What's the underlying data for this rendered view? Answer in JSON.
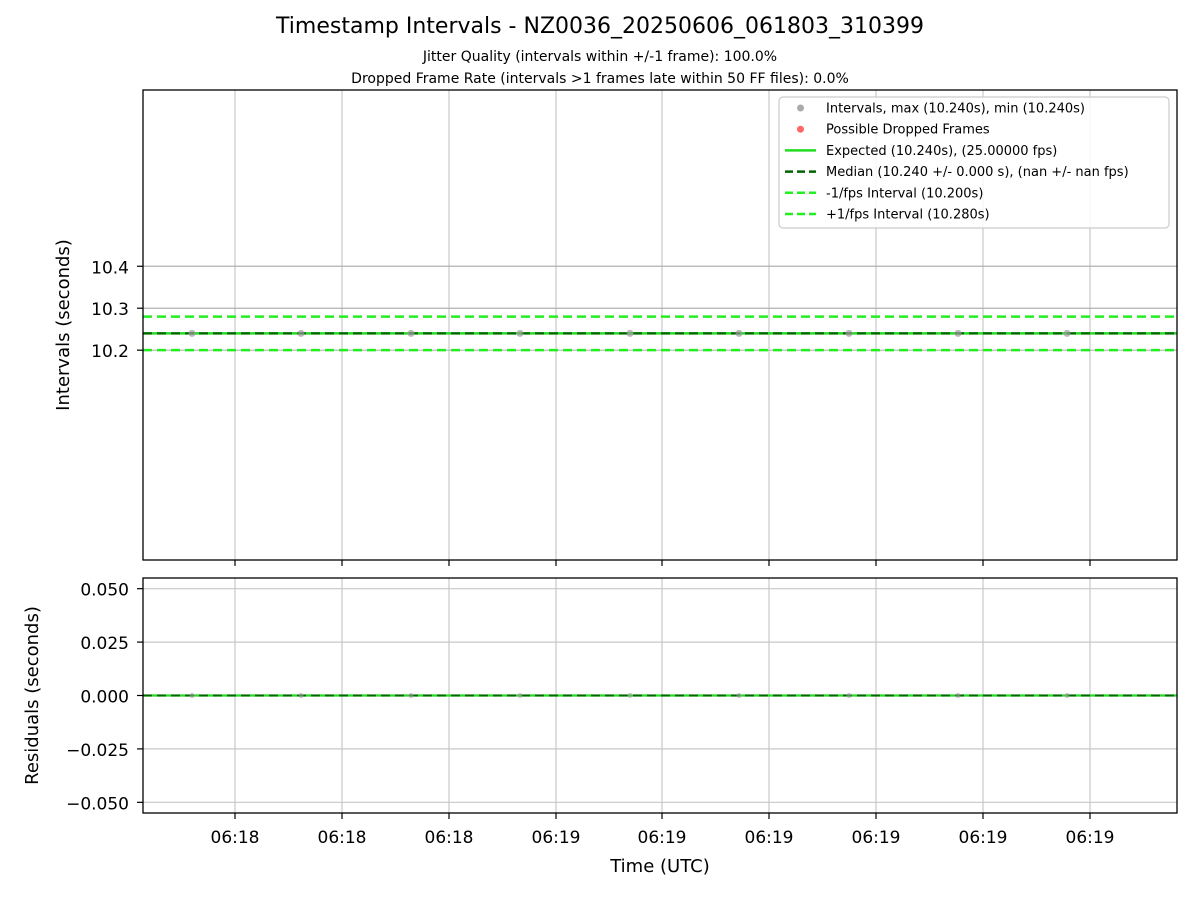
{
  "chart_data": {
    "type": "scatter",
    "title": "Timestamp Intervals - NZ0036_20250606_061803_310399",
    "subtitle_1": "Jitter Quality (intervals within +/-1 frame): 100.0%",
    "subtitle_2": "Dropped Frame Rate (intervals >1 frames late within 50 FF files): 0.0%",
    "xlabel": "Time (UTC)",
    "x_tick_labels": [
      "06:18",
      "06:18",
      "06:18",
      "06:19",
      "06:19",
      "06:19",
      "06:19",
      "06:19",
      "06:19"
    ],
    "top_panel": {
      "ylabel": "Intervals (seconds)",
      "y_ticks": [
        10.2,
        10.3,
        10.4
      ],
      "y_tick_labels": [
        "10.2",
        "10.3",
        "10.4"
      ],
      "ylim": [
        9.7,
        10.82
      ],
      "grid": true,
      "intervals": [
        10.24,
        10.24,
        10.24,
        10.24,
        10.24,
        10.24,
        10.24,
        10.24,
        10.24
      ],
      "expected": 10.24,
      "median": 10.24,
      "minus_fps_interval": 10.2,
      "plus_fps_interval": 10.28,
      "legend": {
        "position": "upper right",
        "entries": [
          {
            "label": "Intervals, max (10.240s), min (10.240s)",
            "style": "marker",
            "color": "#aaaaaa"
          },
          {
            "label": "Possible Dropped Frames",
            "style": "marker",
            "color": "#ff6666"
          },
          {
            "label": "Expected (10.240s), (25.00000 fps)",
            "style": "solid",
            "color": "#22dd22"
          },
          {
            "label": "Median (10.240 +/- 0.000 s), (nan +/- nan fps)",
            "style": "dashed",
            "color": "#006400"
          },
          {
            "label": "-1/fps Interval (10.200s)",
            "style": "dashed",
            "color": "#22ee22"
          },
          {
            "label": "+1/fps Interval (10.280s)",
            "style": "dashed",
            "color": "#22ee22"
          }
        ]
      }
    },
    "bottom_panel": {
      "ylabel": "Residuals (seconds)",
      "y_ticks": [
        -0.05,
        -0.025,
        0.0,
        0.025,
        0.05
      ],
      "y_tick_labels": [
        "−0.050",
        "−0.025",
        "0.000",
        "0.025",
        "0.050"
      ],
      "ylim": [
        -0.055,
        0.055
      ],
      "grid": true,
      "residuals": [
        0,
        0,
        0,
        0,
        0,
        0,
        0,
        0,
        0
      ]
    },
    "colors": {
      "expected": "#22dd22",
      "median": "#006400",
      "fps_bounds": "#22ee22",
      "points": "#9a9a9a",
      "dropped": "#ff6666",
      "grid": "#c8c8c8"
    }
  }
}
